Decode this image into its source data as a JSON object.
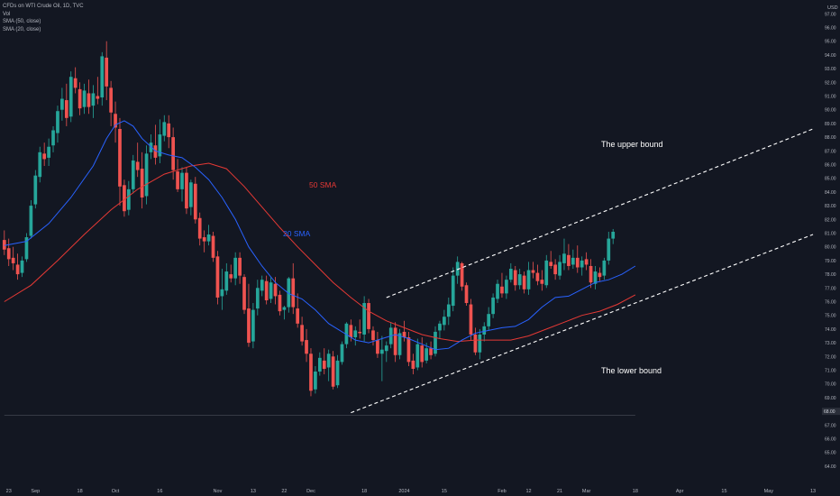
{
  "header": {
    "title": "CFDs on WTI Crude Oil, 1D, TVC",
    "indicators": [
      "Vol",
      "SMA (50, close)",
      "SMA (20, close)"
    ]
  },
  "currency": "USD",
  "colors": {
    "background": "#131722",
    "up": "#26a69a",
    "down": "#ef5350",
    "sma50": "#e53935",
    "sma20": "#2962ff",
    "text": "#b2b5be",
    "channel": "#ffffff"
  },
  "annotations": {
    "sma50_label": "50 SMA",
    "sma20_label": "20 SMA",
    "upper_bound_label": "The upper bound",
    "lower_bound_label": "The lower bound"
  },
  "chart_data": {
    "type": "candlestick",
    "symbol": "CFDs on WTI Crude Oil",
    "interval": "1D",
    "source": "TVC",
    "y_axis": {
      "ylim": [
        63.3,
        98.6
      ],
      "ticks": [
        "64.00",
        "65.00",
        "66.00",
        "67.00",
        "68.00",
        "69.00",
        "70.00",
        "71.00",
        "72.00",
        "73.00",
        "74.00",
        "75.00",
        "76.00",
        "77.00",
        "78.00",
        "79.00",
        "80.00",
        "81.00",
        "82.00",
        "83.00",
        "84.00",
        "85.00",
        "86.00",
        "87.00",
        "88.00",
        "89.00",
        "90.00",
        "91.00",
        "92.00",
        "93.00",
        "94.00",
        "95.00",
        "96.00",
        "97.00"
      ],
      "last_price": "68.00"
    },
    "x_axis": {
      "ticks": [
        {
          "label": "23",
          "bar": 1
        },
        {
          "label": "Sep",
          "bar": 7
        },
        {
          "label": "18",
          "bar": 17
        },
        {
          "label": "Oct",
          "bar": 25
        },
        {
          "label": "16",
          "bar": 35
        },
        {
          "label": "Nov",
          "bar": 48
        },
        {
          "label": "13",
          "bar": 56
        },
        {
          "label": "22",
          "bar": 63
        },
        {
          "label": "Dec",
          "bar": 69
        },
        {
          "label": "18",
          "bar": 81
        },
        {
          "label": "2024",
          "bar": 90
        },
        {
          "label": "15",
          "bar": 99
        },
        {
          "label": "Feb",
          "bar": 112
        },
        {
          "label": "12",
          "bar": 118
        },
        {
          "label": "21",
          "bar": 125
        },
        {
          "label": "Mar",
          "bar": 131
        },
        {
          "label": "18",
          "bar": 142
        },
        {
          "label": "Apr",
          "bar": 152
        },
        {
          "label": "15",
          "bar": 162
        },
        {
          "label": "May",
          "bar": 172
        },
        {
          "label": "13",
          "bar": 182
        }
      ]
    },
    "candles": [
      [
        80.5,
        81.2,
        79.4,
        79.8
      ],
      [
        79.9,
        80.6,
        78.6,
        79.1
      ],
      [
        79.2,
        80.0,
        78.3,
        78.8
      ],
      [
        78.7,
        79.5,
        77.6,
        78.0
      ],
      [
        78.1,
        79.3,
        77.8,
        79.0
      ],
      [
        79.1,
        81.0,
        78.9,
        80.7
      ],
      [
        80.8,
        83.4,
        80.6,
        83.0
      ],
      [
        83.1,
        85.6,
        82.8,
        85.2
      ],
      [
        85.1,
        87.3,
        84.7,
        86.9
      ],
      [
        86.8,
        87.6,
        85.9,
        86.4
      ],
      [
        86.5,
        87.9,
        85.9,
        87.3
      ],
      [
        87.4,
        88.8,
        86.9,
        88.5
      ],
      [
        88.3,
        90.3,
        87.6,
        89.9
      ],
      [
        90.0,
        91.6,
        89.2,
        90.8
      ],
      [
        90.7,
        91.9,
        88.8,
        89.4
      ],
      [
        89.5,
        92.8,
        89.1,
        92.4
      ],
      [
        92.3,
        93.1,
        91.2,
        91.6
      ],
      [
        91.5,
        92.0,
        89.6,
        90.1
      ],
      [
        90.2,
        91.9,
        89.7,
        91.4
      ],
      [
        91.2,
        92.2,
        89.7,
        90.2
      ],
      [
        90.3,
        91.8,
        89.4,
        91.2
      ],
      [
        91.0,
        92.4,
        90.4,
        90.8
      ],
      [
        90.9,
        94.2,
        90.3,
        93.9
      ],
      [
        93.8,
        95.0,
        90.7,
        91.7
      ],
      [
        91.6,
        92.1,
        88.8,
        89.8
      ],
      [
        89.7,
        90.6,
        87.6,
        88.7
      ],
      [
        88.6,
        89.4,
        83.0,
        84.4
      ],
      [
        84.5,
        84.9,
        82.2,
        82.6
      ],
      [
        82.7,
        84.8,
        82.3,
        84.2
      ],
      [
        84.2,
        86.7,
        83.9,
        86.3
      ],
      [
        86.2,
        87.6,
        85.1,
        85.6
      ],
      [
        85.7,
        86.9,
        82.8,
        83.6
      ],
      [
        83.7,
        87.4,
        83.1,
        86.8
      ],
      [
        86.9,
        88.2,
        86.4,
        87.6
      ],
      [
        87.4,
        88.9,
        86.0,
        86.5
      ],
      [
        86.6,
        89.3,
        86.1,
        88.2
      ],
      [
        88.1,
        89.6,
        87.7,
        89.1
      ],
      [
        89.0,
        89.6,
        87.2,
        88.0
      ],
      [
        88.0,
        88.7,
        84.9,
        85.6
      ],
      [
        85.5,
        86.4,
        84.0,
        84.2
      ],
      [
        84.2,
        85.8,
        83.3,
        85.4
      ],
      [
        85.4,
        85.8,
        82.4,
        82.8
      ],
      [
        82.9,
        84.9,
        82.3,
        84.7
      ],
      [
        84.6,
        85.1,
        81.7,
        82.0
      ],
      [
        82.1,
        82.5,
        80.1,
        80.6
      ],
      [
        80.7,
        81.2,
        79.6,
        80.4
      ],
      [
        80.4,
        81.6,
        80.1,
        80.9
      ],
      [
        80.8,
        81.1,
        78.9,
        79.2
      ],
      [
        79.3,
        79.7,
        75.8,
        76.3
      ],
      [
        76.4,
        78.4,
        75.4,
        76.9
      ],
      [
        76.8,
        78.8,
        76.5,
        78.2
      ],
      [
        78.0,
        78.7,
        77.4,
        77.7
      ],
      [
        77.7,
        79.6,
        77.2,
        79.2
      ],
      [
        79.2,
        79.6,
        77.3,
        77.9
      ],
      [
        77.8,
        78.0,
        75.1,
        75.4
      ],
      [
        75.5,
        77.3,
        72.7,
        73.0
      ],
      [
        73.1,
        75.9,
        72.6,
        75.4
      ],
      [
        75.5,
        77.6,
        75.0,
        77.0
      ],
      [
        76.8,
        77.9,
        76.4,
        77.6
      ],
      [
        77.5,
        77.9,
        75.8,
        76.1
      ],
      [
        76.2,
        77.8,
        75.9,
        77.4
      ],
      [
        77.3,
        77.8,
        75.8,
        76.4
      ],
      [
        76.5,
        76.8,
        75.0,
        75.3
      ],
      [
        75.4,
        75.7,
        74.7,
        75.6
      ],
      [
        75.6,
        77.8,
        75.2,
        77.7
      ],
      [
        77.7,
        78.8,
        75.1,
        75.6
      ],
      [
        75.5,
        76.6,
        74.1,
        74.4
      ],
      [
        74.3,
        74.9,
        72.8,
        73.1
      ],
      [
        73.2,
        74.0,
        71.6,
        72.2
      ],
      [
        72.2,
        72.6,
        69.1,
        69.5
      ],
      [
        69.6,
        71.3,
        69.3,
        70.9
      ],
      [
        70.9,
        72.3,
        70.6,
        71.9
      ],
      [
        71.7,
        72.6,
        70.7,
        71.1
      ],
      [
        71.2,
        72.5,
        70.2,
        72.2
      ],
      [
        72.0,
        72.4,
        69.6,
        69.8
      ],
      [
        69.9,
        72.1,
        69.7,
        71.7
      ],
      [
        71.6,
        73.1,
        71.4,
        72.9
      ],
      [
        72.9,
        74.5,
        72.6,
        74.4
      ],
      [
        74.3,
        74.7,
        73.1,
        73.4
      ],
      [
        73.4,
        74.2,
        72.8,
        73.9
      ],
      [
        73.8,
        74.7,
        73.3,
        73.7
      ],
      [
        73.6,
        76.4,
        73.1,
        75.9
      ],
      [
        75.9,
        76.2,
        73.7,
        74.0
      ],
      [
        73.9,
        74.2,
        72.8,
        73.2
      ],
      [
        73.2,
        73.8,
        71.9,
        72.2
      ],
      [
        72.2,
        73.5,
        70.2,
        72.5
      ],
      [
        72.4,
        73.1,
        71.6,
        72.8
      ],
      [
        72.9,
        74.5,
        72.6,
        74.1
      ],
      [
        74.1,
        74.5,
        71.6,
        72.1
      ],
      [
        72.1,
        74.0,
        71.8,
        73.7
      ],
      [
        73.8,
        74.6,
        73.1,
        73.4
      ],
      [
        73.4,
        73.8,
        71.3,
        71.6
      ],
      [
        71.7,
        72.2,
        70.7,
        71.1
      ],
      [
        71.2,
        73.3,
        71.0,
        72.9
      ],
      [
        72.8,
        73.4,
        71.2,
        71.6
      ],
      [
        71.7,
        73.0,
        71.5,
        72.6
      ],
      [
        72.6,
        73.1,
        71.8,
        72.1
      ],
      [
        72.2,
        74.2,
        72.0,
        73.8
      ],
      [
        73.9,
        74.6,
        73.3,
        74.4
      ],
      [
        74.3,
        75.4,
        73.9,
        74.9
      ],
      [
        74.9,
        76.3,
        74.3,
        75.8
      ],
      [
        75.7,
        78.5,
        75.3,
        77.9
      ],
      [
        77.9,
        79.3,
        77.3,
        78.9
      ],
      [
        78.8,
        78.9,
        76.8,
        77.1
      ],
      [
        77.2,
        77.4,
        75.7,
        75.9
      ],
      [
        75.8,
        76.2,
        73.2,
        73.6
      ],
      [
        73.6,
        74.1,
        72.1,
        72.3
      ],
      [
        72.3,
        74.0,
        71.8,
        73.6
      ],
      [
        73.6,
        74.5,
        73.1,
        74.2
      ],
      [
        74.2,
        75.6,
        73.9,
        75.1
      ],
      [
        75.1,
        76.6,
        74.8,
        76.3
      ],
      [
        76.2,
        77.6,
        75.9,
        77.3
      ],
      [
        77.1,
        78.1,
        76.3,
        76.6
      ],
      [
        76.6,
        77.9,
        76.2,
        77.6
      ],
      [
        77.6,
        78.8,
        77.4,
        78.4
      ],
      [
        78.3,
        78.6,
        76.8,
        77.2
      ],
      [
        77.2,
        78.4,
        76.9,
        78.0
      ],
      [
        77.9,
        78.2,
        76.6,
        76.9
      ],
      [
        76.9,
        78.9,
        76.5,
        78.3
      ],
      [
        78.3,
        78.9,
        77.7,
        78.1
      ],
      [
        78.1,
        78.7,
        77.2,
        77.5
      ],
      [
        77.6,
        78.3,
        76.8,
        77.3
      ],
      [
        77.2,
        79.4,
        77.0,
        79.0
      ],
      [
        78.9,
        79.7,
        78.4,
        78.6
      ],
      [
        78.7,
        79.1,
        77.6,
        78.0
      ],
      [
        77.9,
        79.4,
        77.6,
        78.9
      ],
      [
        78.8,
        80.6,
        78.3,
        79.5
      ],
      [
        79.4,
        80.2,
        78.3,
        78.6
      ],
      [
        78.7,
        79.8,
        78.4,
        79.2
      ],
      [
        79.2,
        80.1,
        78.1,
        78.5
      ],
      [
        78.5,
        79.3,
        77.9,
        79.0
      ],
      [
        79.1,
        79.6,
        78.3,
        78.7
      ],
      [
        78.6,
        79.1,
        77.0,
        77.4
      ],
      [
        77.3,
        78.6,
        76.9,
        78.2
      ],
      [
        78.1,
        78.5,
        77.5,
        77.8
      ],
      [
        77.9,
        79.2,
        77.6,
        79.0
      ],
      [
        79.0,
        81.1,
        78.7,
        80.6
      ],
      [
        80.6,
        81.3,
        80.2,
        81.1
      ]
    ],
    "series": [
      {
        "name": "SMA (20, close)",
        "label": "20 SMA",
        "values": [
          [
            0,
            80.1
          ],
          [
            5,
            80.4
          ],
          [
            10,
            81.7
          ],
          [
            15,
            83.6
          ],
          [
            20,
            85.9
          ],
          [
            23,
            87.9
          ],
          [
            25,
            88.9
          ],
          [
            27,
            89.2
          ],
          [
            29,
            88.8
          ],
          [
            31,
            87.9
          ],
          [
            34,
            87.0
          ],
          [
            37,
            86.7
          ],
          [
            40,
            86.5
          ],
          [
            43,
            85.8
          ],
          [
            46,
            84.9
          ],
          [
            49,
            83.6
          ],
          [
            52,
            82.0
          ],
          [
            55,
            80.0
          ],
          [
            58,
            78.6
          ],
          [
            61,
            77.4
          ],
          [
            64,
            76.6
          ],
          [
            67,
            76.2
          ],
          [
            70,
            75.4
          ],
          [
            73,
            74.4
          ],
          [
            76,
            73.8
          ],
          [
            79,
            73.2
          ],
          [
            82,
            73.0
          ],
          [
            85,
            73.3
          ],
          [
            88,
            73.6
          ],
          [
            91,
            73.3
          ],
          [
            94,
            72.9
          ],
          [
            97,
            72.5
          ],
          [
            100,
            72.6
          ],
          [
            103,
            73.2
          ],
          [
            106,
            73.7
          ],
          [
            109,
            73.9
          ],
          [
            112,
            74.1
          ],
          [
            115,
            74.2
          ],
          [
            118,
            74.7
          ],
          [
            121,
            75.6
          ],
          [
            124,
            76.3
          ],
          [
            127,
            76.4
          ],
          [
            130,
            76.9
          ],
          [
            133,
            77.4
          ],
          [
            136,
            77.6
          ],
          [
            139,
            78.0
          ],
          [
            142,
            78.6
          ]
        ]
      },
      {
        "name": "SMA (50, close)",
        "label": "50 SMA",
        "values": [
          [
            0,
            76.0
          ],
          [
            6,
            77.2
          ],
          [
            12,
            79.0
          ],
          [
            18,
            80.9
          ],
          [
            24,
            82.7
          ],
          [
            30,
            84.2
          ],
          [
            36,
            85.3
          ],
          [
            42,
            85.9
          ],
          [
            46,
            86.1
          ],
          [
            50,
            85.7
          ],
          [
            54,
            84.4
          ],
          [
            58,
            82.9
          ],
          [
            62,
            81.4
          ],
          [
            66,
            80.0
          ],
          [
            70,
            78.7
          ],
          [
            74,
            77.4
          ],
          [
            78,
            76.3
          ],
          [
            82,
            75.3
          ],
          [
            86,
            74.6
          ],
          [
            90,
            74.1
          ],
          [
            94,
            73.6
          ],
          [
            98,
            73.3
          ],
          [
            102,
            73.1
          ],
          [
            106,
            73.2
          ],
          [
            110,
            73.2
          ],
          [
            114,
            73.2
          ],
          [
            118,
            73.5
          ],
          [
            122,
            74.0
          ],
          [
            126,
            74.5
          ],
          [
            130,
            75.0
          ],
          [
            134,
            75.3
          ],
          [
            138,
            75.8
          ],
          [
            142,
            76.5
          ]
        ]
      }
    ],
    "channel": {
      "upper": {
        "start": [
          86,
          76.3
        ],
        "end": [
          182,
          88.6
        ]
      },
      "lower": {
        "start": [
          78,
          67.9
        ],
        "end": [
          182,
          80.9
        ]
      }
    },
    "reference_line": {
      "value": 67.7,
      "from_bar": 0,
      "to_bar": 142
    }
  }
}
